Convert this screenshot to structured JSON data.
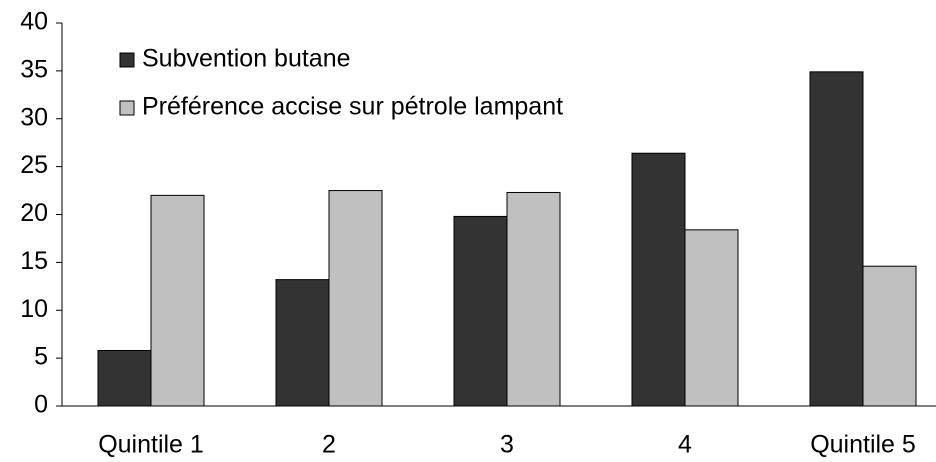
{
  "chart_data": {
    "type": "bar",
    "categories": [
      "Quintile 1",
      "2",
      "3",
      "4",
      "Quintile 5"
    ],
    "series": [
      {
        "name": "Subvention butane",
        "color": "#333333",
        "values": [
          5.8,
          13.2,
          19.8,
          26.4,
          34.9
        ]
      },
      {
        "name": "Préférence accise sur pétrole lampant",
        "color": "#c0c0c0",
        "values": [
          22.0,
          22.5,
          22.3,
          18.4,
          14.6
        ]
      }
    ],
    "ylim": [
      0,
      40
    ],
    "yticks": [
      0,
      5,
      10,
      15,
      20,
      25,
      30,
      35,
      40
    ],
    "grid": false,
    "legend": "top-left"
  }
}
